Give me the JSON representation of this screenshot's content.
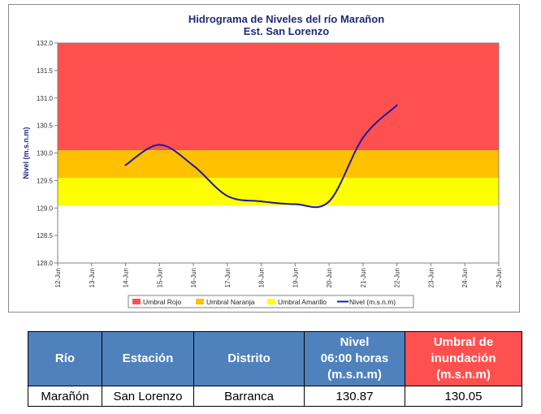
{
  "chart_data": {
    "type": "line",
    "title": "Hidrograma de Niveles del río Marañon",
    "subtitle": "Est. San Lorenzo",
    "xlabel": "",
    "ylabel": "Nivel (m.s.n.m)",
    "ylim": [
      128.0,
      132.0
    ],
    "yticks": [
      "128.0",
      "128.5",
      "129.0",
      "129.5",
      "130.0",
      "130.5",
      "131.0",
      "131.5",
      "132.0"
    ],
    "categories": [
      "12-Jun",
      "13-Jun",
      "14-Jun",
      "15-Jun",
      "16-Jun",
      "17-Jun",
      "18-Jun",
      "19-Jun",
      "20-Jun",
      "21-Jun",
      "22-Jun",
      "23-Jun",
      "24-Jun",
      "25-Jun"
    ],
    "bands": [
      {
        "name": "Umbral Rojo",
        "from": 130.05,
        "to": 132.0,
        "color": "#ff5050"
      },
      {
        "name": "Umbral Naranja",
        "from": 129.55,
        "to": 130.05,
        "color": "#ffc000"
      },
      {
        "name": "Umbral Amarillo",
        "from": 129.05,
        "to": 129.55,
        "color": "#ffff00"
      }
    ],
    "series": [
      {
        "name": "Nivel (m.s.n.m)",
        "color": "#1a1aa6",
        "x": [
          "14-Jun",
          "15-Jun",
          "16-Jun",
          "17-Jun",
          "18-Jun",
          "19-Jun",
          "20-Jun",
          "21-Jun",
          "22-Jun"
        ],
        "values": [
          129.78,
          130.15,
          129.77,
          129.22,
          129.12,
          129.07,
          129.12,
          130.28,
          130.87
        ]
      }
    ],
    "legend": {
      "placement": "bottom",
      "entries": [
        "Umbral Rojo",
        "Umbral Naranja",
        "Umbral Amarillo",
        "Nivel (m.s.n.m)"
      ]
    },
    "grid": false
  },
  "table": {
    "headers": {
      "rio": "Río",
      "estacion": "Estación",
      "distrito": "Distrito",
      "nivel_l1": "Nivel",
      "nivel_l2": "06:00 horas",
      "nivel_l3": "(m.s.n.m)",
      "umbral_l1": "Umbral de",
      "umbral_l2": "inundación",
      "umbral_l3": "(m.s.n.m)"
    },
    "row": {
      "rio": "Marañón",
      "estacion": "San Lorenzo",
      "distrito": "Barranca",
      "nivel": "130.87",
      "umbral": "130.05"
    }
  }
}
